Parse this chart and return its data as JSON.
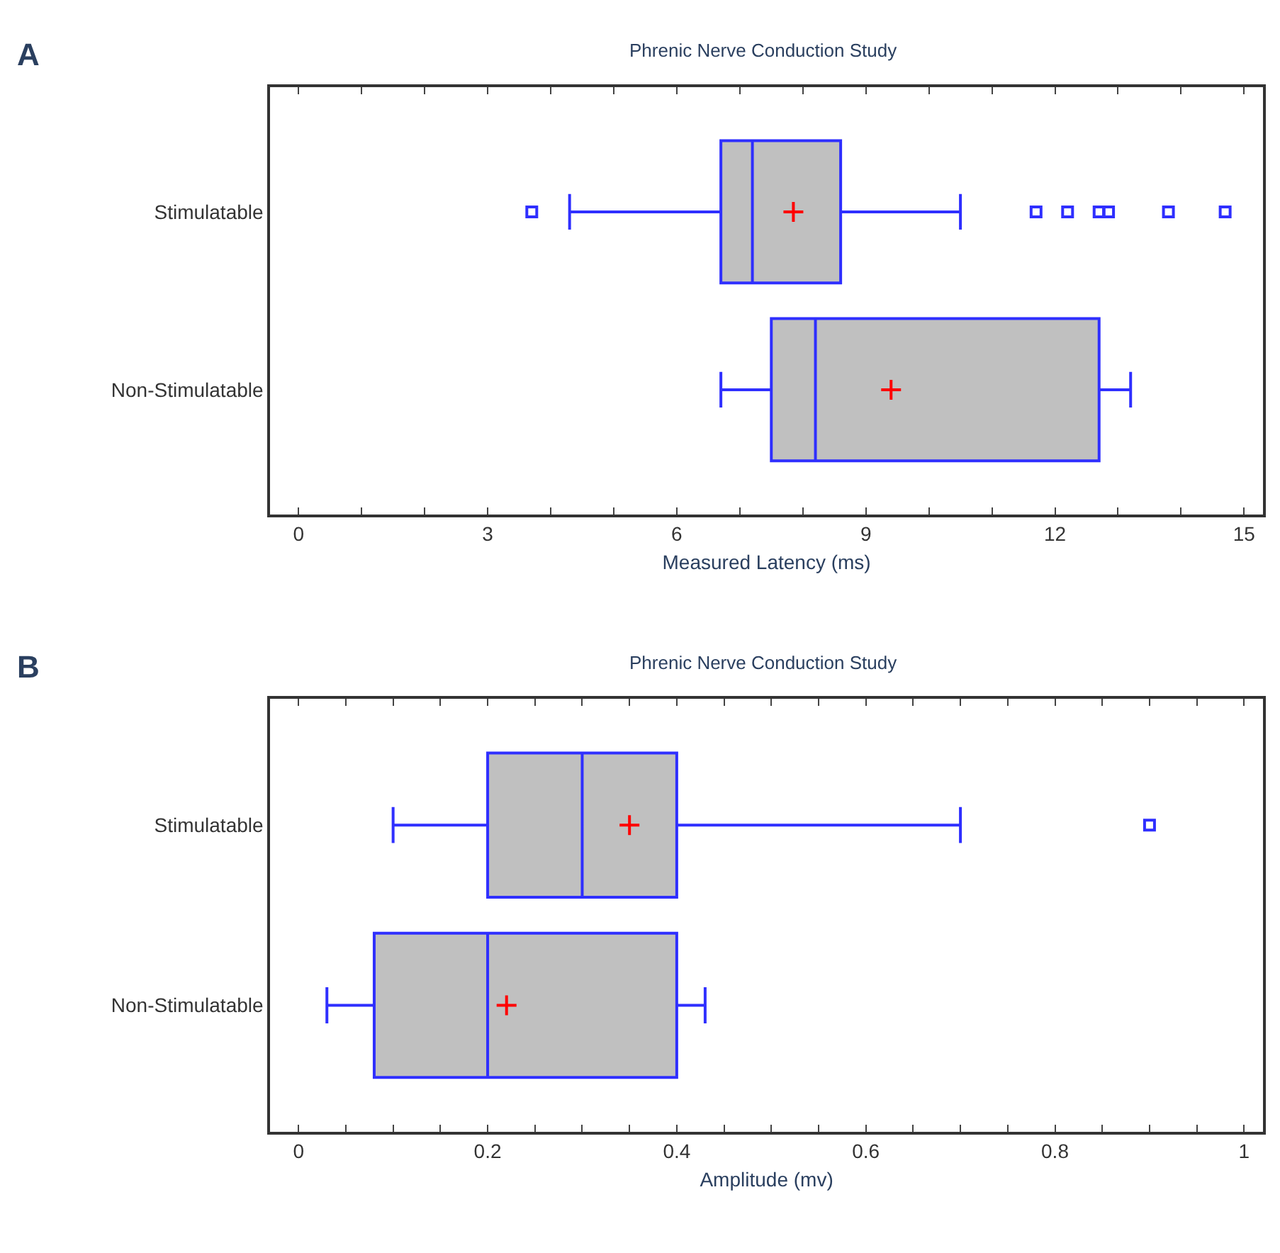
{
  "chart_data": [
    {
      "type": "box",
      "orientation": "horizontal",
      "title": "Phrenic Nerve Conduction Study",
      "xlabel": "Measured Latency (ms)",
      "annotations": [
        "A"
      ],
      "categories": [
        "Stimulatable",
        "Non-Stimulatable"
      ],
      "series": [
        {
          "color": "#2f2fff",
          "boxes": [
            {
              "low": 4.3,
              "q1": 6.7,
              "median": 7.2,
              "q3": 8.6,
              "high": 10.5,
              "mean": 7.85,
              "outliers": [
                3.7,
                11.7,
                12.2,
                12.7,
                12.85,
                13.8,
                14.7
              ]
            },
            {
              "low": 6.7,
              "q1": 7.5,
              "median": 8.2,
              "q3": 12.7,
              "high": 13.2,
              "mean": 9.4
            }
          ]
        }
      ],
      "xlim": [
        -0.45,
        15.3
      ],
      "xticks": [
        0,
        {
          "value": 1,
          "label": null
        },
        {
          "value": 2,
          "label": null
        },
        3,
        {
          "value": 4,
          "label": null
        },
        {
          "value": 5,
          "label": null
        },
        6,
        {
          "value": 7,
          "label": null
        },
        {
          "value": 8,
          "label": null
        },
        9,
        {
          "value": 10,
          "label": null
        },
        {
          "value": 11,
          "label": null
        },
        12,
        {
          "value": 13,
          "label": null
        },
        {
          "value": 14,
          "label": null
        },
        15
      ]
    },
    {
      "type": "box",
      "orientation": "horizontal",
      "title": "Phrenic Nerve Conduction Study",
      "xlabel": "Amplitude (mv)",
      "annotations": [
        "B"
      ],
      "categories": [
        "Stimulatable",
        "Non-Stimulatable"
      ],
      "series": [
        {
          "color": "#2f2fff",
          "boxes": [
            {
              "low": 0.1,
              "q1": 0.2,
              "median": 0.3,
              "q3": 0.4,
              "high": 0.7,
              "mean": 0.35,
              "outliers": [
                0.9
              ]
            },
            {
              "low": 0.03,
              "q1": 0.08,
              "median": 0.2,
              "q3": 0.4,
              "high": 0.43,
              "mean": 0.22
            }
          ]
        }
      ],
      "xlim": [
        -0.03,
        1.02
      ],
      "xticks": [
        0,
        {
          "value": 0.05,
          "label": null
        },
        {
          "value": 0.1,
          "label": null
        },
        {
          "value": 0.15,
          "label": null
        },
        0.2,
        {
          "value": 0.25,
          "label": null
        },
        {
          "value": 0.3,
          "label": null
        },
        {
          "value": 0.35,
          "label": null
        },
        0.4,
        {
          "value": 0.45,
          "label": null
        },
        {
          "value": 0.5,
          "label": null
        },
        {
          "value": 0.55,
          "label": null
        },
        0.6,
        {
          "value": 0.65,
          "label": null
        },
        {
          "value": 0.7,
          "label": null
        },
        {
          "value": 0.75,
          "label": null
        },
        0.8,
        {
          "value": 0.85,
          "label": null
        },
        {
          "value": 0.9,
          "label": null
        },
        {
          "value": 0.95,
          "label": null
        },
        1
      ]
    }
  ]
}
